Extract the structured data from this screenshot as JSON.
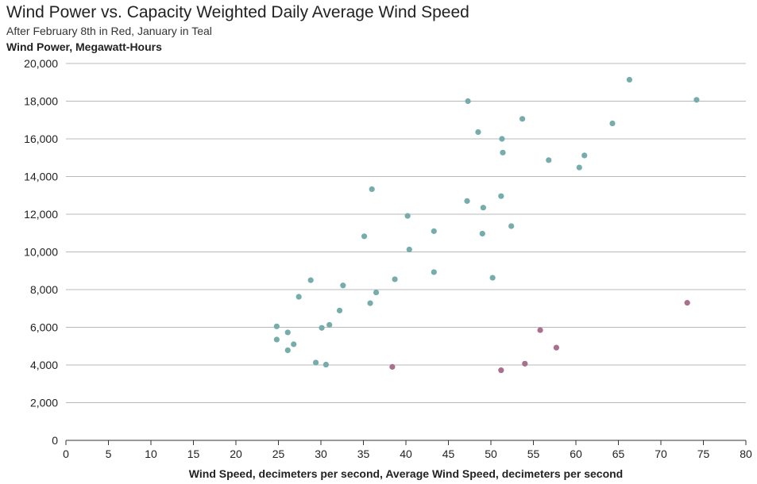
{
  "chart_data": {
    "type": "scatter",
    "title": "Wind Power vs. Capacity Weighted Daily Average Wind Speed",
    "subtitle": "After February 8th in Red, January in Teal",
    "ylabel": "Wind Power, Megawatt-Hours",
    "xlabel": "Wind Speed, decimeters per second, Average Wind Speed, decimeters per second",
    "xlim": [
      0,
      80
    ],
    "ylim": [
      0,
      20000
    ],
    "xticks": [
      0,
      5,
      10,
      15,
      20,
      25,
      30,
      35,
      40,
      45,
      50,
      55,
      60,
      65,
      70,
      75,
      80
    ],
    "yticks": [
      0,
      2000,
      4000,
      6000,
      8000,
      10000,
      12000,
      14000,
      16000,
      18000,
      20000
    ],
    "ytick_labels": [
      "0",
      "2,000",
      "4,000",
      "6,000",
      "8,000",
      "10,000",
      "12,000",
      "14,000",
      "16,000",
      "18,000",
      "20,000"
    ],
    "grid": "horizontal",
    "series": [
      {
        "color": "#76acac",
        "points": [
          [
            24.8,
            6050
          ],
          [
            24.8,
            5350
          ],
          [
            26.1,
            5730
          ],
          [
            26.1,
            4780
          ],
          [
            26.8,
            5100
          ],
          [
            27.4,
            7620
          ],
          [
            28.8,
            8500
          ],
          [
            29.4,
            4130
          ],
          [
            30.1,
            5970
          ],
          [
            30.6,
            4020
          ],
          [
            31.0,
            6130
          ],
          [
            32.2,
            6890
          ],
          [
            32.6,
            8220
          ],
          [
            35.1,
            10830
          ],
          [
            35.8,
            7280
          ],
          [
            36.0,
            13330
          ],
          [
            36.5,
            7850
          ],
          [
            38.7,
            8550
          ],
          [
            40.2,
            11910
          ],
          [
            40.4,
            10130
          ],
          [
            43.3,
            11100
          ],
          [
            43.3,
            8930
          ],
          [
            47.2,
            12700
          ],
          [
            47.3,
            18000
          ],
          [
            48.5,
            16360
          ],
          [
            49.0,
            10970
          ],
          [
            49.1,
            12350
          ],
          [
            50.2,
            8630
          ],
          [
            51.2,
            12960
          ],
          [
            51.3,
            16000
          ],
          [
            51.4,
            15270
          ],
          [
            52.4,
            11370
          ],
          [
            53.7,
            17060
          ],
          [
            56.8,
            14870
          ],
          [
            60.4,
            14480
          ],
          [
            61.0,
            15120
          ],
          [
            64.3,
            16820
          ],
          [
            66.3,
            19140
          ],
          [
            74.2,
            18070
          ]
        ]
      },
      {
        "color": "#a8708e",
        "points": [
          [
            38.4,
            3900
          ],
          [
            51.2,
            3720
          ],
          [
            54.0,
            4070
          ],
          [
            55.8,
            5850
          ],
          [
            57.7,
            4920
          ],
          [
            73.1,
            7300
          ]
        ]
      }
    ]
  }
}
